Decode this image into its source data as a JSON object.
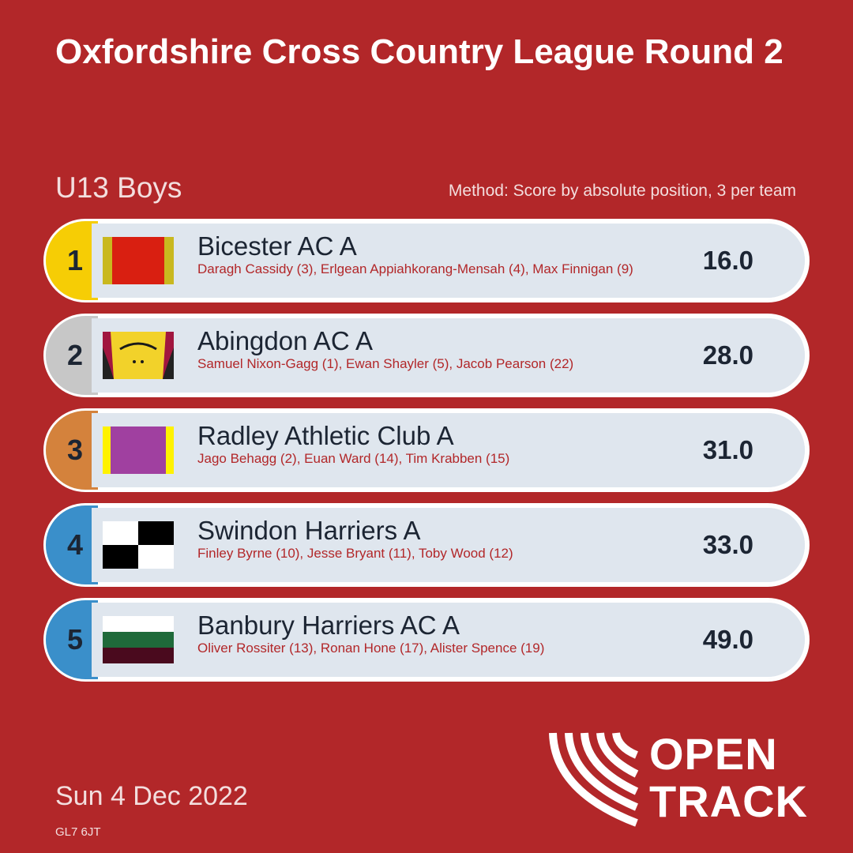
{
  "header": {
    "title": "Oxfordshire Cross Country League Round 2",
    "category": "U13 Boys",
    "method": "Method: Score by absolute position, 3 per team"
  },
  "results": [
    {
      "position": "1",
      "team": "Bicester AC A",
      "members": "Daragh Cassidy (3), Erlgean Appiahkorang-Mensah (4), Max Finnigan (9)",
      "score": "16.0",
      "badge_icon": "bicester-kit-icon",
      "badge_colors": [
        "#c9b81f",
        "#d91f11"
      ],
      "accent_color": "#f6cd05"
    },
    {
      "position": "2",
      "team": "Abingdon AC A",
      "members": "Samuel Nixon-Gagg (1), Ewan Shayler (5), Jacob Pearson (22)",
      "score": "28.0",
      "badge_icon": "abingdon-kit-icon",
      "badge_colors": [
        "#f2d22a",
        "#a1163f"
      ],
      "accent_color": "#c7c7c7"
    },
    {
      "position": "3",
      "team": "Radley Athletic Club A",
      "members": "Jago Behagg (2), Euan Ward (14), Tim Krabben (15)",
      "score": "31.0",
      "badge_icon": "radley-kit-icon",
      "badge_colors": [
        "#fff200",
        "#a040a0"
      ],
      "accent_color": "#d4823c"
    },
    {
      "position": "4",
      "team": "Swindon Harriers A",
      "members": "Finley Byrne (10), Jesse Bryant (11), Toby Wood (12)",
      "score": "33.0",
      "badge_icon": "swindon-kit-icon",
      "badge_colors": [
        "#000000",
        "#ffffff"
      ],
      "accent_color": "#3a8fca"
    },
    {
      "position": "5",
      "team": "Banbury Harriers AC A",
      "members": "Oliver Rossiter (13), Ronan Hone (17), Alister Spence (19)",
      "score": "49.0",
      "badge_icon": "banbury-kit-icon",
      "badge_colors": [
        "#ffffff",
        "#1f6a3a",
        "#4a0a1e"
      ],
      "accent_color": "#3a8fca"
    }
  ],
  "footer": {
    "date": "Sun 4 Dec 2022",
    "postcode": "GL7 6JT",
    "brand_line1": "OPEN",
    "brand_line2": "TRACK"
  }
}
